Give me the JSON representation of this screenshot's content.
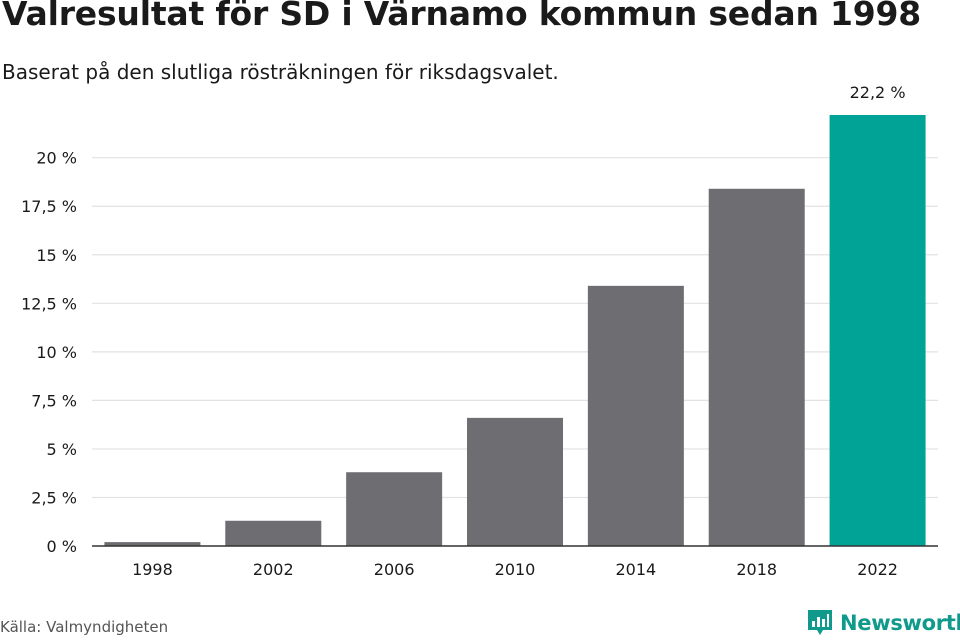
{
  "title": "Valresultat för SD i Värnamo kommun sedan 1998",
  "subtitle": "Baserat på den slutliga rösträkningen för riksdagsvalet.",
  "source": "Källa: Valmyndigheten",
  "brand": "Newsworthy",
  "colors": {
    "bar": "#6e6d72",
    "highlight": "#00a396",
    "grid": "#e2e2e2",
    "axis": "#333333",
    "brand": "#0f9a8c"
  },
  "chart_data": {
    "type": "bar",
    "title": "Valresultat för SD i Värnamo kommun sedan 1998",
    "xlabel": "",
    "ylabel": "",
    "categories": [
      "1998",
      "2002",
      "2006",
      "2010",
      "2014",
      "2018",
      "2022"
    ],
    "values": [
      0.2,
      1.3,
      3.8,
      6.6,
      13.4,
      18.4,
      22.2
    ],
    "highlight_index": 6,
    "data_labels": {
      "6": "22,2 %"
    },
    "yticks": [
      0,
      2.5,
      5,
      7.5,
      10,
      12.5,
      15,
      17.5,
      20
    ],
    "ytick_labels": [
      "0 %",
      "2,5 %",
      "5 %",
      "7,5 %",
      "10 %",
      "12,5 %",
      "15 %",
      "17,5 %",
      "20 %"
    ],
    "ylim": [
      0,
      22.2
    ],
    "grid": true
  }
}
